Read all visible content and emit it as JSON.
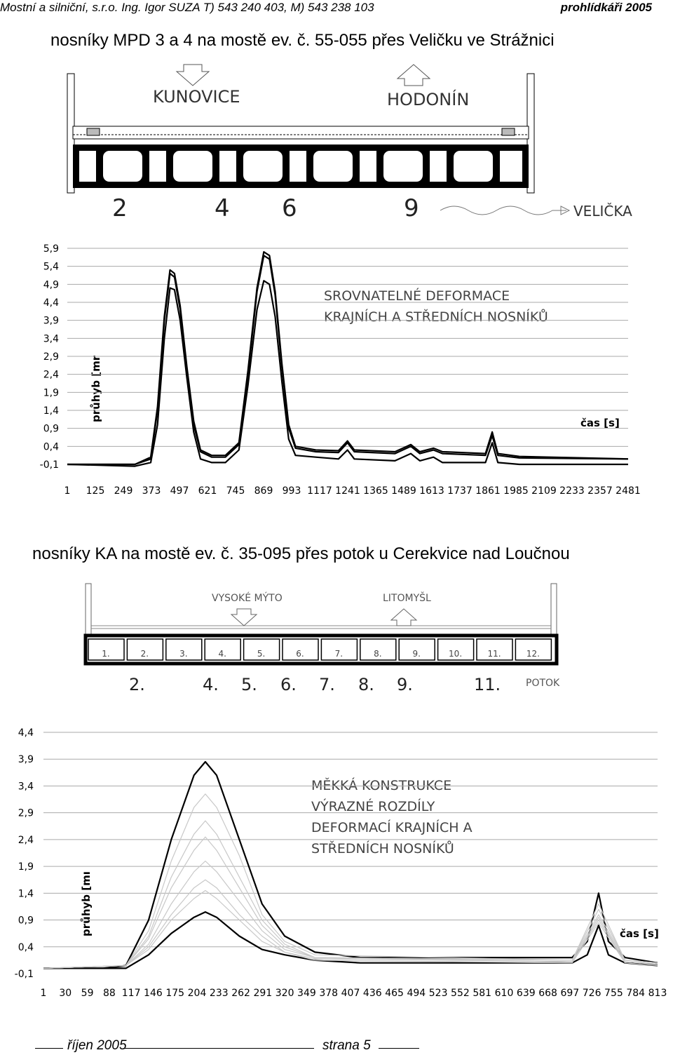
{
  "header": {
    "left": "Mostní a silniční, s.r.o. Ing. Igor SUZA T) 543 240 403, M) 543 238 103",
    "right": "prohlídkáři 2005"
  },
  "section1": {
    "title": "nosníky MPD 3 a 4 na mostě ev. č. 55-055 přes Veličku ve Strážnici",
    "scheme": {
      "left_town": "KUNOVICE",
      "right_town": "HODONÍN",
      "beam_numbers": [
        "2",
        "4",
        "6",
        "9"
      ],
      "river": "VELIČKA"
    }
  },
  "section2": {
    "title": "nosníky KA na mostě ev. č. 35-095 přes potok u Cerekvice nad Loučnou",
    "scheme": {
      "left_town": "VYSOKÉ MÝTO",
      "right_town": "LITOMYŠL",
      "slot_labels": [
        "1.",
        "2.",
        "3.",
        "4.",
        "5.",
        "6.",
        "7.",
        "8.",
        "9.",
        "10.",
        "11.",
        "12."
      ],
      "measured_labels": [
        "2.",
        "4.",
        "5.",
        "6.",
        "7.",
        "8.",
        "9.",
        "11."
      ],
      "stream": "POTOK"
    }
  },
  "chart_data": [
    {
      "type": "line",
      "annotation": [
        "SROVNATELNÉ DEFORMACE",
        "KRAJNÍCH A STŘEDNÍCH NOSNÍKŮ"
      ],
      "ylabel": "průhyb [mr",
      "xlabel": "čas [s]",
      "yticks": [
        "5,9",
        "5,4",
        "4,9",
        "4,4",
        "3,9",
        "3,4",
        "2,9",
        "2,4",
        "1,9",
        "1,4",
        "0,9",
        "0,4",
        "-0,1"
      ],
      "xticks": [
        "1",
        "125",
        "249",
        "373",
        "497",
        "621",
        "745",
        "869",
        "993",
        "1117",
        "1241",
        "1365",
        "1489",
        "1613",
        "1737",
        "1861",
        "1985",
        "2109",
        "2233",
        "2357",
        "2481"
      ],
      "xlim": [
        1,
        2481
      ],
      "ylim": [
        -0.1,
        5.9
      ],
      "grid": "horizontal",
      "series": [
        {
          "values": [
            [
              1,
              -0.1
            ],
            [
              300,
              -0.1
            ],
            [
              370,
              0.1
            ],
            [
              400,
              1.5
            ],
            [
              430,
              4.0
            ],
            [
              455,
              5.3
            ],
            [
              475,
              5.2
            ],
            [
              500,
              4.3
            ],
            [
              530,
              2.6
            ],
            [
              560,
              1.1
            ],
            [
              590,
              0.3
            ],
            [
              640,
              0.15
            ],
            [
              700,
              0.15
            ],
            [
              760,
              0.5
            ],
            [
              800,
              2.5
            ],
            [
              840,
              4.8
            ],
            [
              870,
              5.8
            ],
            [
              895,
              5.7
            ],
            [
              920,
              4.7
            ],
            [
              950,
              2.7
            ],
            [
              980,
              1.0
            ],
            [
              1010,
              0.4
            ],
            [
              1100,
              0.3
            ],
            [
              1200,
              0.28
            ],
            [
              1240,
              0.55
            ],
            [
              1270,
              0.3
            ],
            [
              1450,
              0.25
            ],
            [
              1520,
              0.45
            ],
            [
              1560,
              0.25
            ],
            [
              1620,
              0.35
            ],
            [
              1660,
              0.25
            ],
            [
              1850,
              0.2
            ],
            [
              1880,
              0.8
            ],
            [
              1905,
              0.2
            ],
            [
              2000,
              0.12
            ],
            [
              2481,
              0.05
            ]
          ]
        },
        {
          "values": [
            [
              1,
              -0.1
            ],
            [
              300,
              -0.1
            ],
            [
              370,
              0.05
            ],
            [
              400,
              1.4
            ],
            [
              430,
              3.9
            ],
            [
              455,
              5.2
            ],
            [
              475,
              5.1
            ],
            [
              500,
              4.2
            ],
            [
              530,
              2.5
            ],
            [
              560,
              1.0
            ],
            [
              590,
              0.25
            ],
            [
              640,
              0.1
            ],
            [
              700,
              0.1
            ],
            [
              760,
              0.45
            ],
            [
              800,
              2.4
            ],
            [
              840,
              4.7
            ],
            [
              870,
              5.7
            ],
            [
              895,
              5.6
            ],
            [
              920,
              4.6
            ],
            [
              950,
              2.6
            ],
            [
              980,
              0.9
            ],
            [
              1010,
              0.35
            ],
            [
              1100,
              0.25
            ],
            [
              1200,
              0.23
            ],
            [
              1240,
              0.5
            ],
            [
              1270,
              0.25
            ],
            [
              1450,
              0.2
            ],
            [
              1520,
              0.4
            ],
            [
              1560,
              0.2
            ],
            [
              1620,
              0.3
            ],
            [
              1660,
              0.2
            ],
            [
              1850,
              0.15
            ],
            [
              1880,
              0.7
            ],
            [
              1905,
              0.15
            ],
            [
              2000,
              0.08
            ],
            [
              2481,
              0.05
            ]
          ]
        },
        {
          "values": [
            [
              1,
              -0.1
            ],
            [
              300,
              -0.15
            ],
            [
              370,
              -0.05
            ],
            [
              400,
              1.0
            ],
            [
              430,
              3.4
            ],
            [
              455,
              4.8
            ],
            [
              475,
              4.75
            ],
            [
              500,
              3.9
            ],
            [
              530,
              2.3
            ],
            [
              560,
              0.8
            ],
            [
              590,
              0.05
            ],
            [
              640,
              -0.05
            ],
            [
              700,
              -0.05
            ],
            [
              760,
              0.3
            ],
            [
              800,
              2.1
            ],
            [
              840,
              4.2
            ],
            [
              870,
              5.0
            ],
            [
              895,
              4.9
            ],
            [
              920,
              4.0
            ],
            [
              950,
              2.2
            ],
            [
              980,
              0.6
            ],
            [
              1010,
              0.15
            ],
            [
              1100,
              0.1
            ],
            [
              1200,
              0.05
            ],
            [
              1240,
              0.3
            ],
            [
              1270,
              0.05
            ],
            [
              1450,
              0.0
            ],
            [
              1520,
              0.2
            ],
            [
              1560,
              0.0
            ],
            [
              1620,
              0.1
            ],
            [
              1660,
              -0.05
            ],
            [
              1850,
              -0.05
            ],
            [
              1880,
              0.5
            ],
            [
              1905,
              -0.05
            ],
            [
              2000,
              -0.1
            ],
            [
              2481,
              -0.1
            ]
          ]
        }
      ]
    },
    {
      "type": "line",
      "annotation": [
        "MĚKKÁ KONSTRUKCE",
        "VÝRAZNÉ ROZDÍLY",
        "DEFORMACÍ KRAJNÍCH A",
        "STŘEDNÍCH NOSNÍKŮ"
      ],
      "ylabel": "průhyb [mı",
      "xlabel": "čas [s]",
      "yticks": [
        "4,4",
        "3,9",
        "3,4",
        "2,9",
        "2,4",
        "1,9",
        "1,4",
        "0,9",
        "0,4",
        "-0,1"
      ],
      "xticks": [
        "1",
        "30",
        "59",
        "88",
        "117",
        "146",
        "175",
        "204",
        "233",
        "262",
        "291",
        "320",
        "349",
        "378",
        "407",
        "436",
        "465",
        "494",
        "523",
        "552",
        "581",
        "610",
        "639",
        "668",
        "697",
        "726",
        "755",
        "784",
        "813"
      ],
      "xlim": [
        1,
        813
      ],
      "ylim": [
        -0.1,
        4.4
      ],
      "grid": "horizontal",
      "series": [
        {
          "emphasis": true,
          "values": [
            [
              1,
              0.0
            ],
            [
              80,
              0.0
            ],
            [
              110,
              0.05
            ],
            [
              140,
              0.9
            ],
            [
              170,
              2.4
            ],
            [
              200,
              3.6
            ],
            [
              215,
              3.85
            ],
            [
              230,
              3.6
            ],
            [
              260,
              2.4
            ],
            [
              290,
              1.2
            ],
            [
              320,
              0.6
            ],
            [
              360,
              0.3
            ],
            [
              420,
              0.2
            ],
            [
              700,
              0.2
            ],
            [
              720,
              0.5
            ],
            [
              735,
              1.4
            ],
            [
              748,
              0.5
            ],
            [
              770,
              0.2
            ],
            [
              813,
              0.1
            ]
          ]
        },
        {
          "emphasis": true,
          "values": [
            [
              1,
              0.0
            ],
            [
              80,
              0.0
            ],
            [
              110,
              0.0
            ],
            [
              140,
              0.25
            ],
            [
              170,
              0.65
            ],
            [
              200,
              0.95
            ],
            [
              215,
              1.05
            ],
            [
              230,
              0.95
            ],
            [
              260,
              0.6
            ],
            [
              290,
              0.35
            ],
            [
              320,
              0.25
            ],
            [
              360,
              0.15
            ],
            [
              420,
              0.1
            ],
            [
              700,
              0.1
            ],
            [
              720,
              0.25
            ],
            [
              735,
              0.8
            ],
            [
              748,
              0.25
            ],
            [
              770,
              0.1
            ],
            [
              813,
              0.05
            ]
          ]
        },
        {
          "emphasis": false,
          "values": [
            [
              1,
              0.0
            ],
            [
              110,
              0.05
            ],
            [
              140,
              0.7
            ],
            [
              170,
              2.0
            ],
            [
              200,
              3.0
            ],
            [
              215,
              3.25
            ],
            [
              230,
              3.0
            ],
            [
              260,
              2.1
            ],
            [
              290,
              1.0
            ],
            [
              320,
              0.5
            ],
            [
              360,
              0.25
            ],
            [
              700,
              0.15
            ],
            [
              735,
              1.2
            ],
            [
              770,
              0.15
            ],
            [
              813,
              0.1
            ]
          ]
        },
        {
          "emphasis": false,
          "values": [
            [
              1,
              0.0
            ],
            [
              110,
              0.05
            ],
            [
              140,
              0.6
            ],
            [
              170,
              1.7
            ],
            [
              200,
              2.5
            ],
            [
              215,
              2.75
            ],
            [
              230,
              2.5
            ],
            [
              260,
              1.7
            ],
            [
              290,
              0.9
            ],
            [
              320,
              0.45
            ],
            [
              360,
              0.2
            ],
            [
              700,
              0.15
            ],
            [
              735,
              1.1
            ],
            [
              770,
              0.15
            ],
            [
              813,
              0.1
            ]
          ]
        },
        {
          "emphasis": false,
          "values": [
            [
              1,
              0.0
            ],
            [
              110,
              0.05
            ],
            [
              140,
              0.55
            ],
            [
              170,
              1.5
            ],
            [
              200,
              2.2
            ],
            [
              215,
              2.45
            ],
            [
              230,
              2.2
            ],
            [
              260,
              1.5
            ],
            [
              290,
              0.8
            ],
            [
              320,
              0.4
            ],
            [
              360,
              0.2
            ],
            [
              700,
              0.15
            ],
            [
              735,
              1.0
            ],
            [
              770,
              0.15
            ],
            [
              813,
              0.1
            ]
          ]
        },
        {
          "emphasis": false,
          "values": [
            [
              1,
              0.0
            ],
            [
              110,
              0.05
            ],
            [
              140,
              0.45
            ],
            [
              170,
              1.2
            ],
            [
              200,
              1.8
            ],
            [
              215,
              2.0
            ],
            [
              230,
              1.8
            ],
            [
              260,
              1.25
            ],
            [
              290,
              0.7
            ],
            [
              320,
              0.35
            ],
            [
              360,
              0.2
            ],
            [
              700,
              0.12
            ],
            [
              735,
              0.95
            ],
            [
              770,
              0.12
            ],
            [
              813,
              0.08
            ]
          ]
        },
        {
          "emphasis": false,
          "values": [
            [
              1,
              0.0
            ],
            [
              110,
              0.05
            ],
            [
              140,
              0.4
            ],
            [
              170,
              1.0
            ],
            [
              200,
              1.5
            ],
            [
              215,
              1.65
            ],
            [
              230,
              1.5
            ],
            [
              260,
              1.0
            ],
            [
              290,
              0.6
            ],
            [
              320,
              0.3
            ],
            [
              360,
              0.18
            ],
            [
              700,
              0.12
            ],
            [
              735,
              0.9
            ],
            [
              770,
              0.12
            ],
            [
              813,
              0.08
            ]
          ]
        },
        {
          "emphasis": false,
          "values": [
            [
              1,
              0.0
            ],
            [
              110,
              0.05
            ],
            [
              140,
              0.35
            ],
            [
              170,
              0.9
            ],
            [
              200,
              1.3
            ],
            [
              215,
              1.45
            ],
            [
              230,
              1.3
            ],
            [
              260,
              0.9
            ],
            [
              290,
              0.5
            ],
            [
              320,
              0.3
            ],
            [
              360,
              0.15
            ],
            [
              700,
              0.1
            ],
            [
              735,
              0.85
            ],
            [
              770,
              0.1
            ],
            [
              813,
              0.05
            ]
          ]
        }
      ]
    }
  ],
  "footer": {
    "date": "říjen 2005",
    "page": "strana 5"
  }
}
